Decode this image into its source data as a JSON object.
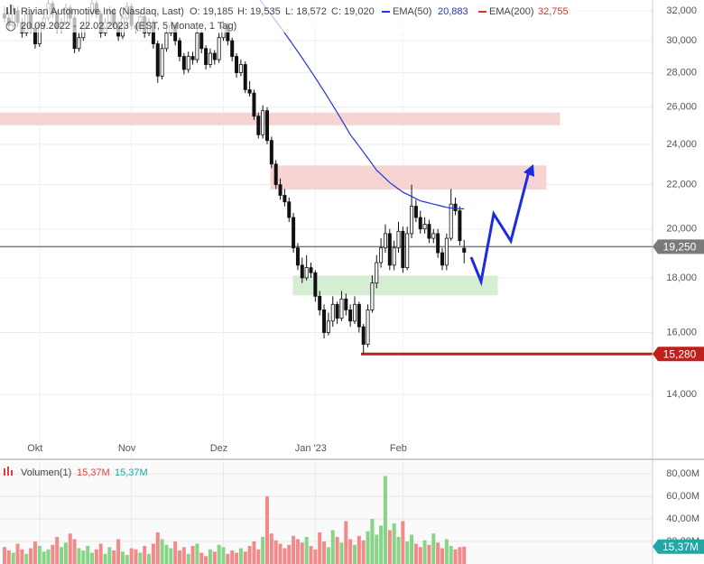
{
  "header": {
    "title": "Rivian Automotive Inc (Nasdaq, Last)",
    "ohlc": [
      "O: 19,185",
      "H: 19,535",
      "L: 18,572",
      "C: 19,020"
    ],
    "period": "20.09.2022 - 22.02.2023",
    "info": "(EST, 5 Monate, 1 Tag)",
    "legend": [
      {
        "name": "EMA(50)",
        "value": "20,883",
        "color": "#2233dd"
      },
      {
        "name": "EMA(200)",
        "value": "32,755",
        "color": "#dd3322"
      }
    ]
  },
  "chart_data": [
    {
      "type": "candlestick",
      "log": true,
      "grid": true,
      "categories": [
        null,
        null,
        null,
        null,
        null,
        null,
        null,
        null,
        null,
        null,
        null,
        null,
        null,
        null,
        null,
        null,
        null,
        null,
        null,
        null,
        null,
        null,
        null,
        null,
        null,
        null,
        null,
        null,
        null,
        null,
        null,
        null,
        null,
        null,
        null,
        null,
        null,
        null,
        null,
        null,
        null,
        null,
        null,
        null,
        null,
        null,
        null,
        null,
        null,
        null,
        null,
        null,
        null,
        null,
        null,
        null,
        null,
        null,
        null,
        null,
        null,
        null,
        null,
        null,
        null,
        null,
        null,
        null,
        null,
        null,
        null,
        null,
        null,
        null,
        null,
        null,
        null,
        null,
        null,
        null,
        null,
        null,
        null,
        null,
        null,
        null,
        null,
        null,
        null,
        null,
        null,
        null,
        null,
        null,
        null,
        null,
        null,
        null,
        null,
        null,
        null,
        null,
        null,
        null,
        null,
        null
      ],
      "xticks": [
        {
          "value": 8,
          "label": "Okt"
        },
        {
          "value": 29,
          "label": "Nov"
        },
        {
          "value": 50,
          "label": "Dez"
        },
        {
          "value": 71,
          "label": "Jan '23"
        },
        {
          "value": 91,
          "label": "Feb"
        }
      ],
      "ylim": [
        12200,
        32750
      ],
      "yticks": [
        {
          "value": 14000,
          "label": "14,000"
        },
        {
          "value": 16000,
          "label": "16,000"
        },
        {
          "value": 18000,
          "label": "18,000"
        },
        {
          "value": 20000,
          "label": "20,000"
        },
        {
          "value": 22000,
          "label": "22,000"
        },
        {
          "value": 24000,
          "label": "24,000"
        },
        {
          "value": 26000,
          "label": "26,000"
        },
        {
          "value": 28000,
          "label": "28,000"
        },
        {
          "value": 30000,
          "label": "30,000"
        },
        {
          "value": 32000,
          "label": "32,000"
        }
      ],
      "ohlc": [
        [
          31800,
          32300,
          31200,
          31500
        ],
        [
          31500,
          31900,
          30700,
          31000
        ],
        [
          31000,
          32400,
          30800,
          32000
        ],
        [
          32000,
          32300,
          30900,
          31200
        ],
        [
          31200,
          31500,
          30200,
          30500
        ],
        [
          30500,
          32100,
          30300,
          31800
        ],
        [
          31800,
          32000,
          30500,
          30800
        ],
        [
          30800,
          31100,
          29500,
          29800
        ],
        [
          29800,
          31300,
          29600,
          31000
        ],
        [
          31000,
          31800,
          30700,
          31500
        ],
        [
          31500,
          32800,
          31300,
          32500
        ],
        [
          32500,
          32700,
          31500,
          31800
        ],
        [
          31800,
          32000,
          30500,
          30800
        ],
        [
          30800,
          31500,
          30500,
          31200
        ],
        [
          31200,
          32500,
          31000,
          32200
        ],
        [
          32200,
          32400,
          31200,
          31500
        ],
        [
          31500,
          31700,
          29200,
          29500
        ],
        [
          29500,
          30500,
          29300,
          30200
        ],
        [
          30200,
          31300,
          30000,
          31000
        ],
        [
          31000,
          32100,
          30800,
          31800
        ],
        [
          31800,
          32800,
          31600,
          32500
        ],
        [
          32500,
          32700,
          31500,
          31800
        ],
        [
          31800,
          32000,
          30200,
          30500
        ],
        [
          30500,
          31500,
          30300,
          31200
        ],
        [
          31200,
          32300,
          31000,
          32000
        ],
        [
          32000,
          32200,
          30700,
          31000
        ],
        [
          31000,
          31300,
          30000,
          30300
        ],
        [
          30300,
          31800,
          30100,
          31500
        ],
        [
          31500,
          32600,
          31300,
          32300
        ],
        [
          32300,
          32500,
          30700,
          31000
        ],
        [
          31000,
          31200,
          30500,
          30800
        ],
        [
          30800,
          31900,
          30600,
          31600
        ],
        [
          31600,
          31800,
          30200,
          30500
        ],
        [
          30500,
          31500,
          30300,
          31200
        ],
        [
          31200,
          31400,
          29500,
          29800
        ],
        [
          29800,
          30000,
          27400,
          27800
        ],
        [
          27800,
          29800,
          27600,
          29500
        ],
        [
          29500,
          30800,
          29300,
          30500
        ],
        [
          30500,
          31300,
          30300,
          31000
        ],
        [
          31000,
          31200,
          29700,
          30000
        ],
        [
          30000,
          30200,
          28700,
          29000
        ],
        [
          29000,
          29200,
          27900,
          28200
        ],
        [
          28200,
          29300,
          28000,
          29000
        ],
        [
          29000,
          29300,
          28500,
          28800
        ],
        [
          28800,
          30800,
          28600,
          30500
        ],
        [
          30500,
          30700,
          29200,
          29500
        ],
        [
          29500,
          29700,
          28200,
          28500
        ],
        [
          28500,
          29500,
          28300,
          29200
        ],
        [
          29200,
          29400,
          28500,
          28800
        ],
        [
          28800,
          30500,
          28600,
          30200
        ],
        [
          30200,
          31300,
          30000,
          31000
        ],
        [
          31000,
          31200,
          29700,
          30000
        ],
        [
          30000,
          30200,
          28700,
          29000
        ],
        [
          29000,
          29200,
          27700,
          28000
        ],
        [
          28000,
          28800,
          27800,
          28500
        ],
        [
          28500,
          28700,
          26800,
          27000
        ],
        [
          27000,
          27500,
          26600,
          26800
        ],
        [
          26800,
          27000,
          25300,
          25500
        ],
        [
          25500,
          25700,
          24300,
          24500
        ],
        [
          24500,
          26100,
          24300,
          25800
        ],
        [
          25800,
          26000,
          24000,
          24200
        ],
        [
          24200,
          24400,
          22800,
          23000
        ],
        [
          23000,
          23200,
          21800,
          22000
        ],
        [
          22000,
          22300,
          21300,
          21500
        ],
        [
          21500,
          21800,
          21000,
          21200
        ],
        [
          21200,
          21400,
          20300,
          20500
        ],
        [
          20500,
          20700,
          19000,
          19200
        ],
        [
          19200,
          19400,
          18300,
          18500
        ],
        [
          18500,
          18800,
          17800,
          18000
        ],
        [
          18000,
          18900,
          17900,
          18400
        ],
        [
          18400,
          18600,
          18000,
          18200
        ],
        [
          18200,
          18300,
          17100,
          17300
        ],
        [
          17300,
          17500,
          16600,
          16800
        ],
        [
          16800,
          17000,
          15800,
          16000
        ],
        [
          16000,
          16700,
          15900,
          16400
        ],
        [
          16400,
          17300,
          16200,
          17000
        ],
        [
          17000,
          17100,
          16300,
          16500
        ],
        [
          16500,
          17500,
          16400,
          17200
        ],
        [
          17200,
          17400,
          16600,
          16800
        ],
        [
          16800,
          17000,
          16200,
          16400
        ],
        [
          16400,
          17300,
          16300,
          17000
        ],
        [
          17000,
          17100,
          16000,
          16200
        ],
        [
          16200,
          16300,
          15280,
          15600
        ],
        [
          15600,
          17000,
          15500,
          16800
        ],
        [
          16800,
          18100,
          16700,
          17800
        ],
        [
          17800,
          18900,
          17600,
          18600
        ],
        [
          18600,
          19600,
          18400,
          19200
        ],
        [
          19200,
          20200,
          19000,
          19800
        ],
        [
          19800,
          20000,
          18300,
          18500
        ],
        [
          18500,
          19500,
          18300,
          19200
        ],
        [
          19200,
          20300,
          19000,
          19900
        ],
        [
          19900,
          20100,
          18200,
          18400
        ],
        [
          18400,
          20100,
          18300,
          19800
        ],
        [
          19800,
          22000,
          19600,
          21000
        ],
        [
          21000,
          21300,
          20300,
          20500
        ],
        [
          20500,
          20800,
          19800,
          20000
        ],
        [
          20000,
          20500,
          19800,
          20200
        ],
        [
          20200,
          20400,
          19400,
          19600
        ],
        [
          19600,
          20000,
          19400,
          19800
        ],
        [
          19800,
          20000,
          18800,
          19000
        ],
        [
          19000,
          19200,
          18300,
          18500
        ],
        [
          18500,
          19800,
          18300,
          19600
        ],
        [
          19600,
          21800,
          19500,
          21100
        ],
        [
          21100,
          21400,
          20600,
          20800
        ],
        [
          20800,
          21000,
          19300,
          19500
        ],
        [
          19185,
          19535,
          18572,
          19020
        ]
      ],
      "series": [
        {
          "name": "EMA(50)",
          "color": "#2233dd",
          "values": [
            null,
            null,
            null,
            null,
            null,
            null,
            null,
            null,
            null,
            null,
            null,
            null,
            null,
            null,
            null,
            null,
            null,
            null,
            null,
            null,
            null,
            null,
            null,
            null,
            null,
            null,
            null,
            null,
            null,
            null,
            null,
            null,
            null,
            null,
            null,
            null,
            null,
            null,
            null,
            null,
            null,
            null,
            null,
            null,
            null,
            null,
            null,
            null,
            null,
            null,
            null,
            null,
            null,
            null,
            null,
            null,
            null,
            33200,
            32900,
            32500,
            32100,
            31700,
            31300,
            30900,
            30500,
            30100,
            29700,
            29300,
            28900,
            28500,
            28100,
            27700,
            27300,
            26900,
            26500,
            26100,
            25700,
            25300,
            24900,
            24500,
            24200,
            23900,
            23600,
            23300,
            23000,
            22700,
            22500,
            22300,
            22100,
            21950,
            21800,
            21650,
            21550,
            21450,
            21350,
            21250,
            21200,
            21150,
            21100,
            21050,
            21000,
            20950,
            20920,
            20900,
            20890,
            20883
          ]
        }
      ],
      "zones": [
        {
          "low": 25030,
          "high": 25670,
          "color": "#f6d4d4"
        },
        {
          "low": 21790,
          "high": 22910,
          "color": "#f6d4d4"
        },
        {
          "low": 17350,
          "high": 18070,
          "color": "#d5eed3"
        }
      ],
      "levels": [
        {
          "value": 19250,
          "label": "19,250",
          "color": "#7a7a7a"
        },
        {
          "value": 15280,
          "label": "15,280",
          "color": "#c0201c"
        }
      ]
    },
    {
      "type": "bar",
      "title": "Volumen(1)",
      "value_label": "15,37M",
      "ylim": [
        0,
        90.4
      ],
      "grid": true,
      "yticks": [
        {
          "value": 20,
          "label": "20,00M"
        },
        {
          "value": 40,
          "label": "40,00M"
        },
        {
          "value": 60,
          "label": "60,00M"
        },
        {
          "value": 80,
          "label": "80,00M"
        }
      ],
      "colors": {
        "up": "#86d486",
        "down": "#f28a8a"
      },
      "label_color": "#22a6a6",
      "values": [
        15,
        12,
        10,
        18,
        13,
        9,
        14,
        20,
        16,
        11,
        13,
        17,
        24,
        15,
        19,
        27,
        22,
        14,
        12,
        16,
        10,
        13,
        18,
        9,
        15,
        12,
        22,
        11,
        8,
        14,
        13,
        10,
        16,
        9,
        18,
        28,
        22,
        17,
        14,
        20,
        12,
        15,
        9,
        16,
        18,
        10,
        7,
        13,
        11,
        17,
        15,
        9,
        12,
        10,
        14,
        11,
        16,
        20,
        13,
        24,
        60,
        27,
        21,
        18,
        14,
        17,
        25,
        22,
        19,
        24,
        16,
        13,
        28,
        20,
        15,
        30,
        24,
        19,
        38,
        22,
        17,
        25,
        21,
        29,
        40,
        26,
        34,
        78,
        30,
        36,
        24,
        38,
        20,
        26,
        18,
        15,
        21,
        17,
        27,
        19,
        14,
        22,
        16,
        13,
        15,
        15.37
      ]
    }
  ]
}
